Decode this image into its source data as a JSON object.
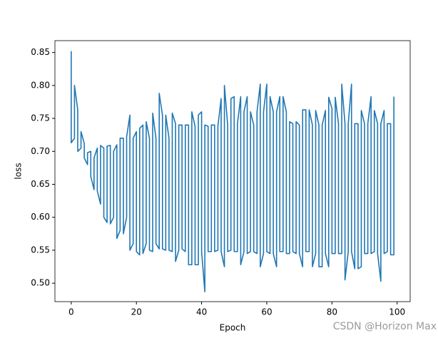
{
  "chart_data": {
    "type": "line",
    "xlabel": "Epoch",
    "ylabel": "loss",
    "watermark": "CSDN @Horizon Max",
    "x": [
      0,
      0,
      1,
      1,
      2,
      2,
      3,
      3,
      4,
      4,
      5,
      5,
      6,
      6,
      7,
      7,
      8,
      8,
      9,
      9,
      10,
      10,
      11,
      11,
      12,
      12,
      13,
      13,
      14,
      14,
      15,
      15,
      16,
      16,
      17,
      17,
      18,
      18,
      19,
      19,
      20,
      20,
      21,
      21,
      22,
      22,
      23,
      23,
      24,
      24,
      25,
      25,
      26,
      26,
      27,
      27,
      28,
      28,
      29,
      29,
      30,
      30,
      31,
      31,
      32,
      32,
      33,
      33,
      34,
      34,
      35,
      35,
      36,
      36,
      37,
      37,
      38,
      38,
      39,
      39,
      40,
      40,
      41,
      41,
      42,
      42,
      43,
      43,
      44,
      44,
      45,
      45,
      46,
      46,
      47,
      47,
      48,
      48,
      49,
      49,
      50,
      50,
      51,
      51,
      52,
      52,
      53,
      53,
      54,
      54,
      55,
      55,
      56,
      56,
      57,
      57,
      58,
      58,
      59,
      59,
      60,
      60,
      61,
      61,
      62,
      62,
      63,
      63,
      64,
      64,
      65,
      65,
      66,
      66,
      67,
      67,
      68,
      68,
      69,
      69,
      70,
      70,
      71,
      71,
      72,
      72,
      73,
      73,
      74,
      74,
      75,
      75,
      76,
      76,
      77,
      77,
      78,
      78,
      79,
      79,
      80,
      80,
      81,
      81,
      82,
      82,
      83,
      83,
      84,
      84,
      85,
      85,
      86,
      86,
      87,
      87,
      88,
      88,
      89,
      89,
      90,
      90,
      91,
      91,
      92,
      92,
      93,
      93,
      94,
      94,
      95,
      95,
      96,
      96,
      97,
      97,
      98,
      98,
      99,
      99
    ],
    "series": [
      {
        "color": "#1f77b4",
        "values": [
          0.852,
          0.713,
          0.72,
          0.8,
          0.763,
          0.7,
          0.705,
          0.73,
          0.712,
          0.69,
          0.68,
          0.698,
          0.7,
          0.662,
          0.642,
          0.69,
          0.705,
          0.64,
          0.62,
          0.709,
          0.705,
          0.6,
          0.592,
          0.708,
          0.709,
          0.59,
          0.6,
          0.7,
          0.71,
          0.568,
          0.58,
          0.72,
          0.72,
          0.575,
          0.6,
          0.722,
          0.755,
          0.55,
          0.56,
          0.72,
          0.73,
          0.548,
          0.543,
          0.735,
          0.74,
          0.545,
          0.56,
          0.745,
          0.72,
          0.55,
          0.548,
          0.758,
          0.72,
          0.56,
          0.552,
          0.788,
          0.755,
          0.552,
          0.55,
          0.755,
          0.72,
          0.55,
          0.548,
          0.758,
          0.742,
          0.533,
          0.55,
          0.74,
          0.74,
          0.552,
          0.548,
          0.74,
          0.74,
          0.528,
          0.528,
          0.76,
          0.738,
          0.528,
          0.528,
          0.755,
          0.76,
          0.548,
          0.487,
          0.74,
          0.738,
          0.548,
          0.548,
          0.74,
          0.74,
          0.548,
          0.55,
          0.738,
          0.78,
          0.548,
          0.525,
          0.8,
          0.74,
          0.548,
          0.55,
          0.78,
          0.783,
          0.548,
          0.548,
          0.742,
          0.783,
          0.528,
          0.548,
          0.76,
          0.783,
          0.545,
          0.548,
          0.76,
          0.74,
          0.548,
          0.545,
          0.76,
          0.802,
          0.525,
          0.545,
          0.76,
          0.802,
          0.548,
          0.545,
          0.783,
          0.76,
          0.545,
          0.525,
          0.76,
          0.783,
          0.548,
          0.548,
          0.783,
          0.76,
          0.545,
          0.545,
          0.745,
          0.742,
          0.548,
          0.545,
          0.745,
          0.74,
          0.545,
          0.525,
          0.763,
          0.763,
          0.548,
          0.548,
          0.763,
          0.74,
          0.525,
          0.545,
          0.762,
          0.74,
          0.525,
          0.525,
          0.74,
          0.762,
          0.545,
          0.525,
          0.782,
          0.765,
          0.545,
          0.545,
          0.782,
          0.742,
          0.545,
          0.545,
          0.802,
          0.742,
          0.505,
          0.548,
          0.742,
          0.802,
          0.548,
          0.522,
          0.742,
          0.742,
          0.522,
          0.525,
          0.762,
          0.742,
          0.545,
          0.545,
          0.742,
          0.783,
          0.545,
          0.548,
          0.762,
          0.742,
          0.545,
          0.503,
          0.742,
          0.762,
          0.545,
          0.548,
          0.742,
          0.742,
          0.543,
          0.543,
          0.783
        ]
      }
    ],
    "xlim": [
      -5,
      104
    ],
    "ylim": [
      0.472,
      0.868
    ],
    "xticks": [
      0,
      20,
      40,
      60,
      80,
      100
    ],
    "yticks": [
      {
        "value": 0.5,
        "label": "0.50"
      },
      {
        "value": 0.55,
        "label": "0.55"
      },
      {
        "value": 0.6,
        "label": "0.60"
      },
      {
        "value": 0.65,
        "label": "0.65"
      },
      {
        "value": 0.7,
        "label": "0.70"
      },
      {
        "value": 0.75,
        "label": "0.75"
      },
      {
        "value": 0.8,
        "label": "0.80"
      },
      {
        "value": 0.85,
        "label": "0.85"
      }
    ],
    "grid": false
  }
}
